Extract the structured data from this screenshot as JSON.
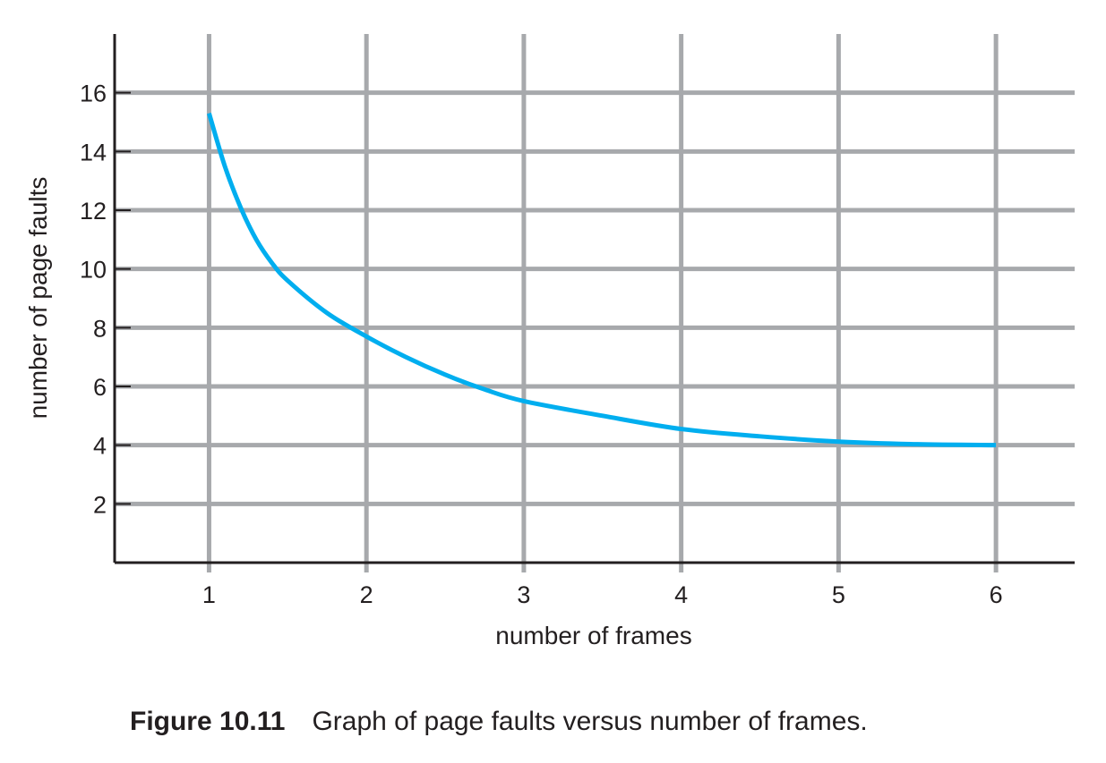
{
  "chart_data": {
    "type": "line",
    "title": "",
    "xlabel": "number of frames",
    "ylabel": "number of page faults",
    "xlim": [
      0.4,
      6.5
    ],
    "ylim": [
      0,
      18
    ],
    "x_ticks": [
      1,
      2,
      3,
      4,
      5,
      6
    ],
    "y_ticks": [
      2,
      4,
      6,
      8,
      10,
      12,
      14,
      16
    ],
    "grid": true,
    "line_color": "#00aeef",
    "grid_color": "#a7a9ac",
    "series": [
      {
        "x": [
          1.0,
          1.1,
          1.2,
          1.3,
          1.4,
          1.5,
          1.75,
          2.0,
          2.25,
          2.5,
          2.75,
          3.0,
          3.5,
          4.0,
          4.5,
          5.0,
          5.5,
          6.0
        ],
        "y": [
          15.3,
          13.5,
          12.1,
          11.0,
          10.2,
          9.6,
          8.5,
          7.7,
          7.0,
          6.4,
          5.9,
          5.5,
          5.0,
          4.55,
          4.3,
          4.12,
          4.03,
          4.0
        ]
      }
    ]
  },
  "caption": {
    "label": "Figure 10.11",
    "text": "Graph of page faults versus number of frames."
  }
}
